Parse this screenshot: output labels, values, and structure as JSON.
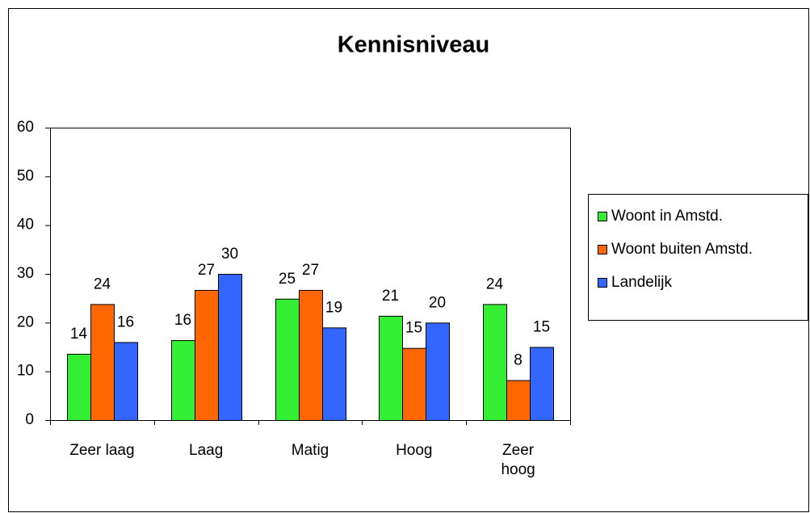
{
  "chart_data": {
    "type": "bar",
    "title": "Kennisniveau",
    "categories": [
      "Zeer laag",
      "Laag",
      "Matig",
      "Hoog",
      "Zeer hoog"
    ],
    "series": [
      {
        "name": "Woont in Amstd.",
        "color": "#33ee33",
        "values": [
          13.6,
          16.4,
          24.9,
          21.4,
          23.8
        ],
        "value_labels": [
          "14",
          "16",
          "25",
          "21",
          "24"
        ]
      },
      {
        "name": "Woont buiten Amstd.",
        "color": "#ff6600",
        "values": [
          23.8,
          26.7,
          26.7,
          14.8,
          8.2
        ],
        "value_labels": [
          "24",
          "27",
          "27",
          "15",
          "8"
        ]
      },
      {
        "name": "Landelijk",
        "color": "#3366ff",
        "values": [
          16,
          30,
          19,
          20,
          15
        ],
        "value_labels": [
          "16",
          "30",
          "19",
          "20",
          "15"
        ]
      }
    ],
    "ylim": [
      0,
      60
    ],
    "yticks": [
      0,
      10,
      20,
      30,
      40,
      50,
      60
    ],
    "grid": false,
    "legend": "right"
  }
}
